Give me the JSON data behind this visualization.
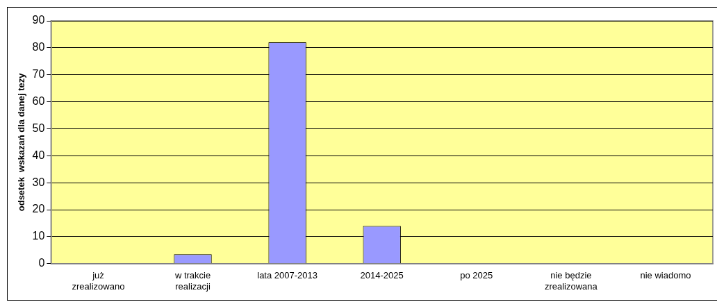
{
  "chart_data": {
    "type": "bar",
    "ylabel": "odsetek  wskazań dla danej tezy",
    "categories": [
      "już zrealizowano",
      "w trakcie realizacji",
      "lata 2007-2013",
      "2014-2025",
      "po 2025",
      "nie będzie zrealizowana",
      "nie wiadomo"
    ],
    "values": [
      0,
      3.5,
      82,
      14,
      0,
      0,
      0
    ],
    "color": "#9999ff",
    "ylim": [
      0,
      90
    ],
    "yticks": [
      0,
      10,
      20,
      30,
      40,
      50,
      60,
      70,
      80,
      90
    ],
    "grid": "y",
    "legend": false
  }
}
